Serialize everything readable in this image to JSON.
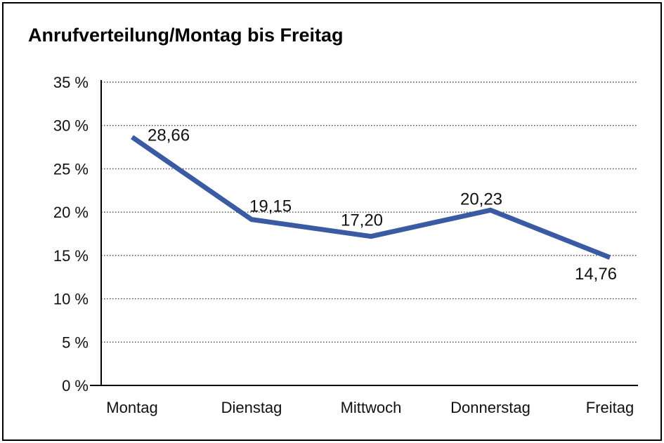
{
  "page": {
    "title": "Anrufverteilung/Montag bis Freitag"
  },
  "chart_data": {
    "type": "line",
    "title": "Anrufverteilung/Montag bis Freitag",
    "categories": [
      "Montag",
      "Dienstag",
      "Mittwoch",
      "Donnerstag",
      "Freitag"
    ],
    "series": [
      {
        "name": "Anrufverteilung",
        "values": [
          28.66,
          19.15,
          17.2,
          20.23,
          14.76
        ],
        "value_labels": [
          "28,66",
          "19,15",
          "17,20",
          "20,23",
          "14,76"
        ]
      }
    ],
    "xlabel": "",
    "ylabel": "",
    "ylim": [
      0,
      35
    ],
    "ytick_step": 5,
    "ytick_labels": [
      "0 %",
      "5 %",
      "10 %",
      "15 %",
      "20 %",
      "25 %",
      "30 %",
      "35 %"
    ],
    "grid": "horizontal-dotted",
    "legend": "none",
    "colors": {
      "line": "#3A5BA4",
      "axis": "#000000",
      "gridline": "#444444",
      "text": "#111111",
      "background": "#ffffff",
      "border": "#000000"
    }
  }
}
